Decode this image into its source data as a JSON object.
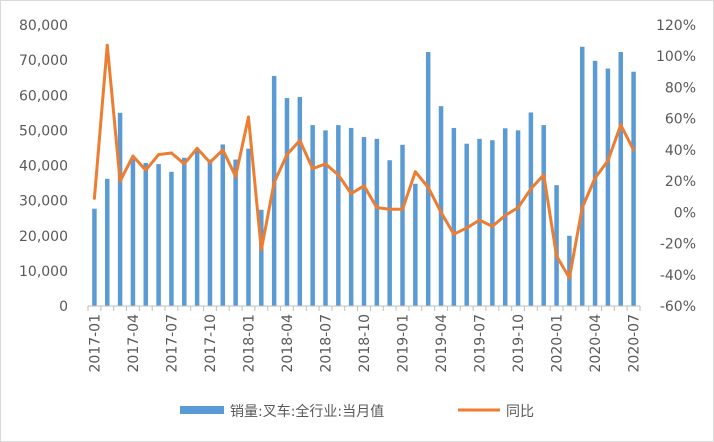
{
  "chart_data": {
    "type": "bar",
    "x": [
      "2017-01",
      "2017-02",
      "2017-03",
      "2017-04",
      "2017-05",
      "2017-06",
      "2017-07",
      "2017-08",
      "2017-09",
      "2017-10",
      "2017-11",
      "2017-12",
      "2018-01",
      "2018-02",
      "2018-03",
      "2018-04",
      "2018-05",
      "2018-06",
      "2018-07",
      "2018-08",
      "2018-09",
      "2018-10",
      "2018-11",
      "2018-12",
      "2019-01",
      "2019-02",
      "2019-03",
      "2019-04",
      "2019-05",
      "2019-06",
      "2019-07",
      "2019-08",
      "2019-09",
      "2019-10",
      "2019-11",
      "2019-12",
      "2020-01",
      "2020-02",
      "2020-03",
      "2020-04",
      "2020-05",
      "2020-06",
      "2020-07"
    ],
    "x_tick_labels": [
      "2017-01",
      "2017-04",
      "2017-07",
      "2017-10",
      "2018-01",
      "2018-04",
      "2018-07",
      "2018-10",
      "2019-01",
      "2019-04",
      "2019-07",
      "2019-10",
      "2020-01",
      "2020-04",
      "2020-07"
    ],
    "series": [
      {
        "name": "销量:叉车:全行业:当月值",
        "type": "bar",
        "axis": "left",
        "color": "#5b9bd5",
        "values": [
          27700,
          36200,
          55000,
          41900,
          40700,
          40400,
          38200,
          42200,
          44500,
          41700,
          46000,
          41700,
          44800,
          27400,
          65500,
          59200,
          59500,
          51500,
          50000,
          51500,
          50700,
          48100,
          47600,
          41500,
          45900,
          34800,
          72300,
          56900,
          50700,
          46200,
          47600,
          47200,
          50600,
          50000,
          55100,
          51500,
          34400,
          20000,
          73800,
          69800,
          67600,
          72300,
          66700
        ]
      },
      {
        "name": "同比",
        "type": "line",
        "axis": "right",
        "color": "#ed7d31",
        "values": [
          0.09,
          1.07,
          0.2,
          0.36,
          0.27,
          0.37,
          0.38,
          0.31,
          0.41,
          0.32,
          0.4,
          0.23,
          0.61,
          -0.24,
          0.19,
          0.37,
          0.46,
          0.28,
          0.31,
          0.24,
          0.12,
          0.17,
          0.03,
          0.02,
          0.02,
          0.26,
          0.16,
          0.0,
          -0.14,
          -0.1,
          -0.05,
          -0.09,
          -0.02,
          0.03,
          0.15,
          0.24,
          -0.28,
          -0.42,
          0.03,
          0.22,
          0.33,
          0.56,
          0.4
        ]
      }
    ],
    "y_left": {
      "min": 0,
      "max": 80000,
      "step": 10000,
      "tick_labels": [
        "0",
        "10,000",
        "20,000",
        "30,000",
        "40,000",
        "50,000",
        "60,000",
        "70,000",
        "80,000"
      ]
    },
    "y_right": {
      "min": -0.6,
      "max": 1.2,
      "step": 0.2,
      "tick_labels": [
        "-60%",
        "-40%",
        "-20%",
        "0%",
        "20%",
        "40%",
        "60%",
        "80%",
        "100%",
        "120%"
      ]
    },
    "grid": false,
    "legend_position": "bottom"
  }
}
